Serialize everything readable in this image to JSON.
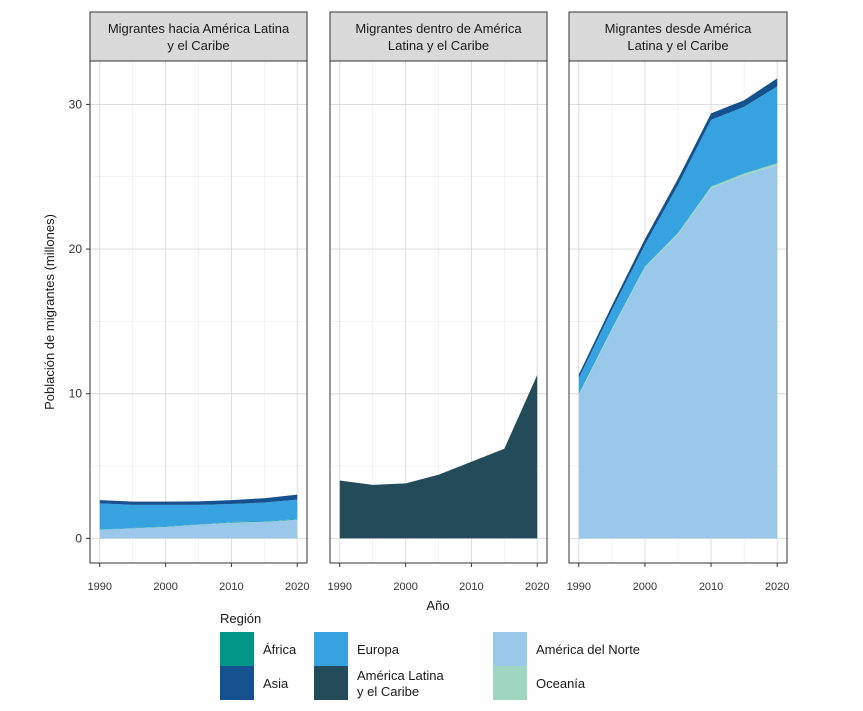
{
  "chart_data": {
    "type": "area",
    "stacked": true,
    "ylabel": "Población de migrantes (millones)",
    "xlabel": "Año",
    "xlim": [
      1990,
      2020
    ],
    "ylim": [
      -1.7,
      33
    ],
    "x_ticks": [
      "1990",
      "2000",
      "2010",
      "2020"
    ],
    "y_ticks": [
      "0",
      "10",
      "20",
      "30"
    ],
    "grid": true,
    "x": [
      1990,
      1995,
      2000,
      2005,
      2010,
      2015,
      2020
    ],
    "legend": {
      "title": "Región",
      "position": "bottom",
      "entries": [
        {
          "key": "africa",
          "label": [
            "África"
          ],
          "color": "#009688"
        },
        {
          "key": "asia",
          "label": [
            "Asia"
          ],
          "color": "#15508f"
        },
        {
          "key": "europa",
          "label": [
            "Europa"
          ],
          "color": "#36a2df"
        },
        {
          "key": "alc",
          "label": [
            "América Latina",
            "y el Caribe"
          ],
          "color": "#244b5a"
        },
        {
          "key": "norte",
          "label": [
            "América del Norte"
          ],
          "color": "#9ac8ea"
        },
        {
          "key": "oceania",
          "label": [
            "Oceanía"
          ],
          "color": "#9ed6c2"
        }
      ]
    },
    "stack_order": [
      "norte",
      "oceania",
      "alc",
      "africa",
      "europa",
      "asia"
    ],
    "panels": [
      {
        "title": [
          "Migrantes hacia América Latina",
          "y el Caribe"
        ],
        "series": {
          "africa": [
            0.02,
            0.02,
            0.02,
            0.02,
            0.03,
            0.03,
            0.03
          ],
          "asia": [
            0.23,
            0.22,
            0.22,
            0.24,
            0.27,
            0.3,
            0.35
          ],
          "europa": [
            1.8,
            1.6,
            1.5,
            1.35,
            1.25,
            1.3,
            1.35
          ],
          "alc": [
            0,
            0,
            0,
            0,
            0,
            0,
            0
          ],
          "norte": [
            0.6,
            0.7,
            0.8,
            0.95,
            1.1,
            1.15,
            1.3
          ],
          "oceania": [
            0,
            0,
            0,
            0,
            0,
            0,
            0
          ]
        }
      },
      {
        "title": [
          "Migrantes dentro de América",
          "Latina y el Caribe"
        ],
        "series": {
          "africa": [
            0,
            0,
            0,
            0,
            0,
            0,
            0
          ],
          "asia": [
            0,
            0,
            0,
            0,
            0,
            0,
            0
          ],
          "europa": [
            0,
            0,
            0,
            0,
            0,
            0,
            0
          ],
          "alc": [
            4.0,
            3.7,
            3.8,
            4.4,
            5.3,
            6.2,
            11.3
          ],
          "norte": [
            0,
            0,
            0,
            0,
            0,
            0,
            0
          ],
          "oceania": [
            0,
            0,
            0,
            0,
            0,
            0,
            0
          ]
        }
      },
      {
        "title": [
          "Migrantes desde América",
          "Latina y el Caribe"
        ],
        "series": {
          "africa": [
            0.01,
            0.01,
            0.01,
            0.02,
            0.02,
            0.02,
            0.02
          ],
          "asia": [
            0.25,
            0.3,
            0.4,
            0.45,
            0.45,
            0.45,
            0.55
          ],
          "europa": [
            1.1,
            1.3,
            1.5,
            3.3,
            4.6,
            4.6,
            5.3
          ],
          "alc": [
            0,
            0,
            0,
            0,
            0,
            0,
            0
          ],
          "norte": [
            9.9,
            14.4,
            18.7,
            21.0,
            24.2,
            25.1,
            25.8
          ],
          "oceania": [
            0.07,
            0.08,
            0.09,
            0.1,
            0.11,
            0.12,
            0.13
          ]
        }
      }
    ]
  }
}
